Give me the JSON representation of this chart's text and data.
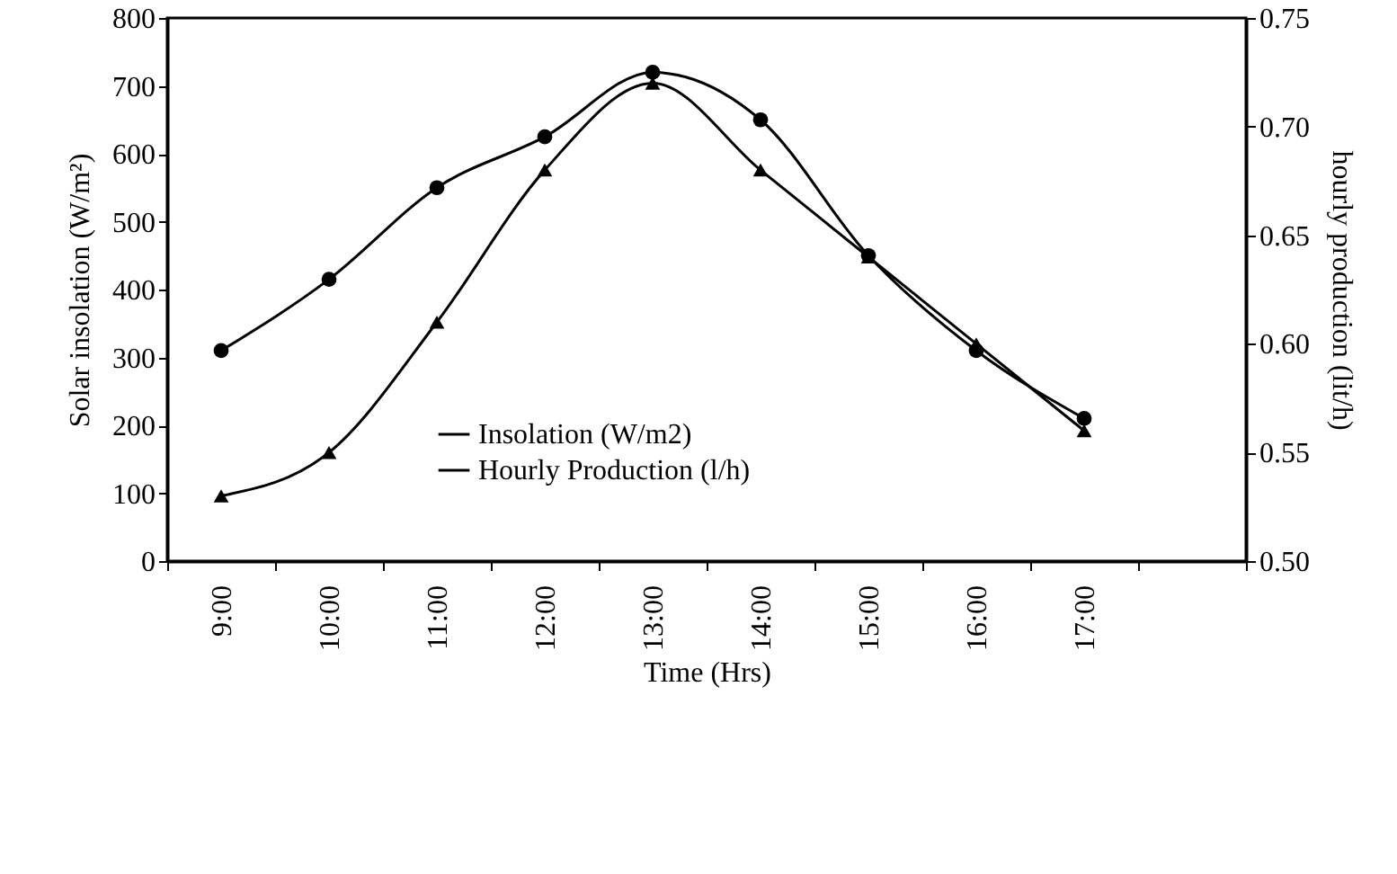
{
  "chart_data": {
    "type": "line",
    "xlabel": "Time (Hrs)",
    "ylabel": "Solar insolation (W/m²)",
    "y2label": "hourly production (lit/h)",
    "categories": [
      "9:00",
      "10:00",
      "11:00",
      "12:00",
      "13:00",
      "14:00",
      "15:00",
      "16:00",
      "17:00",
      null
    ],
    "series": [
      {
        "name": "Insolation (W/m2)",
        "color": "#000000",
        "marker": "circle",
        "values": [
          310,
          415,
          550,
          625,
          720,
          650,
          450,
          310,
          210,
          null
        ]
      },
      {
        "name": "Hourly Production (l/h)",
        "color": "#000000",
        "marker": "triangle",
        "axis": "y2",
        "values": [
          0.53,
          0.55,
          0.61,
          0.68,
          0.72,
          0.68,
          0.64,
          0.6,
          0.56,
          null
        ]
      }
    ],
    "ylim": [
      0,
      800
    ],
    "yticks": [
      0,
      100,
      200,
      300,
      400,
      500,
      600,
      700,
      800
    ],
    "y2lim": [
      0.5,
      0.75
    ],
    "y2ticks": [
      {
        "value": 0.5,
        "label": "0.50"
      },
      {
        "value": 0.55,
        "label": "0.55"
      },
      {
        "value": 0.6,
        "label": "0.60"
      },
      {
        "value": 0.65,
        "label": "0.65"
      },
      {
        "value": 0.7,
        "label": "0.70"
      },
      {
        "value": 0.75,
        "label": "0.75"
      }
    ],
    "grid": false,
    "legend": "center left"
  }
}
